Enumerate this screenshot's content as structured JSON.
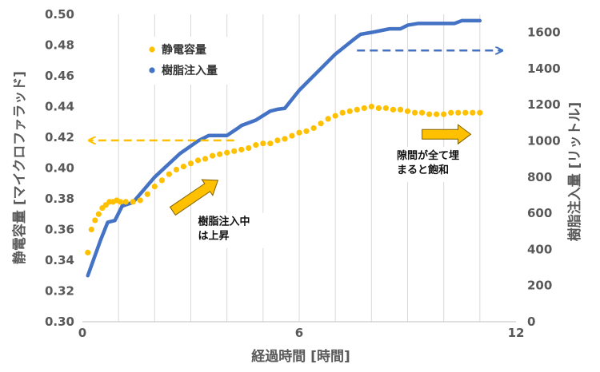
{
  "chart_data": {
    "type": "scatter+line",
    "xlabel": "経過時間 [時間]",
    "ylabel_left": "静電容量 [マイクロファラッド]",
    "ylabel_right": "樹脂注入量 [リットル]",
    "xlim": [
      0,
      12
    ],
    "x_ticks": [
      0,
      6,
      12
    ],
    "ylim_left": [
      0.3,
      0.5
    ],
    "y_ticks_left": [
      "0.30",
      "0.32",
      "0.34",
      "0.36",
      "0.38",
      "0.40",
      "0.42",
      "0.44",
      "0.46",
      "0.48",
      "0.50"
    ],
    "ylim_right": [
      0,
      1700
    ],
    "y_ticks_right": [
      0,
      200,
      400,
      600,
      800,
      1000,
      1200,
      1400,
      1600
    ],
    "grid": "vertical-only",
    "legend": {
      "placement": "top-left",
      "entries": [
        {
          "name": "静電容量",
          "color": "#FFC000"
        },
        {
          "name": "樹脂注入量",
          "color": "#4472C4"
        }
      ]
    },
    "series": [
      {
        "name": "静電容量",
        "kind": "scatter",
        "axis": "left",
        "color": "#FFC000",
        "x": [
          0.15,
          0.25,
          0.35,
          0.45,
          0.55,
          0.65,
          0.75,
          0.85,
          0.95,
          1.05,
          1.2,
          1.4,
          1.6,
          1.8,
          2.0,
          2.2,
          2.4,
          2.6,
          2.8,
          3.0,
          3.2,
          3.4,
          3.6,
          3.8,
          4.0,
          4.2,
          4.4,
          4.6,
          4.8,
          5.0,
          5.2,
          5.4,
          5.6,
          5.8,
          6.0,
          6.2,
          6.4,
          6.6,
          6.8,
          7.0,
          7.2,
          7.4,
          7.6,
          7.8,
          8.0,
          8.2,
          8.4,
          8.6,
          8.8,
          9.0,
          9.2,
          9.4,
          9.6,
          9.8,
          10.0,
          10.2,
          10.4,
          10.6,
          10.8,
          11.0
        ],
        "y": [
          0.345,
          0.36,
          0.366,
          0.37,
          0.374,
          0.376,
          0.378,
          0.378,
          0.379,
          0.378,
          0.378,
          0.378,
          0.379,
          0.383,
          0.388,
          0.392,
          0.396,
          0.399,
          0.401,
          0.403,
          0.405,
          0.406,
          0.408,
          0.409,
          0.41,
          0.411,
          0.412,
          0.413,
          0.415,
          0.416,
          0.416,
          0.418,
          0.419,
          0.421,
          0.423,
          0.424,
          0.426,
          0.429,
          0.432,
          0.434,
          0.436,
          0.437,
          0.438,
          0.439,
          0.44,
          0.439,
          0.439,
          0.438,
          0.438,
          0.437,
          0.436,
          0.436,
          0.435,
          0.435,
          0.435,
          0.436,
          0.436,
          0.436,
          0.436,
          0.436
        ]
      },
      {
        "name": "樹脂注入量",
        "kind": "line",
        "axis": "right",
        "color": "#4472C4",
        "x": [
          0.15,
          0.5,
          0.7,
          0.9,
          1.0,
          1.1,
          1.4,
          2.0,
          2.7,
          3.2,
          3.5,
          4.0,
          4.3,
          4.4,
          4.6,
          4.8,
          5.0,
          5.2,
          5.4,
          5.6,
          6.0,
          6.5,
          7.0,
          7.5,
          7.7,
          8.0,
          8.5,
          8.8,
          9.0,
          9.3,
          9.5,
          10.0,
          10.3,
          10.5,
          11.0
        ],
        "y": [
          255,
          450,
          550,
          560,
          600,
          640,
          660,
          800,
          930,
          1000,
          1030,
          1030,
          1070,
          1085,
          1100,
          1115,
          1140,
          1165,
          1175,
          1180,
          1280,
          1380,
          1480,
          1560,
          1590,
          1600,
          1620,
          1620,
          1640,
          1650,
          1650,
          1650,
          1650,
          1665,
          1665
        ]
      }
    ],
    "annotations": [
      {
        "kind": "dashed-arrow",
        "color": "#FFC000",
        "from": [
          4.2,
          0.418
        ],
        "to": [
          0.2,
          0.418
        ],
        "axis": "left",
        "meaning": "points to left axis"
      },
      {
        "kind": "dashed-arrow",
        "color": "#4472C4",
        "from": [
          7.6,
          1500
        ],
        "to": [
          11.6,
          1500
        ],
        "axis": "right",
        "meaning": "points to right axis"
      },
      {
        "kind": "block-arrow",
        "color": "#FFC000",
        "from": [
          2.5,
          0.372
        ],
        "to": [
          3.75,
          0.392
        ],
        "axis": "left",
        "label": "樹脂注入中\nは上昇",
        "label_at": [
          3.2,
          0.363
        ]
      },
      {
        "kind": "block-arrow",
        "color": "#FFC000",
        "from": [
          9.4,
          0.422
        ],
        "to": [
          10.75,
          0.422
        ],
        "axis": "left",
        "label": "隙間が全て埋\nまると飽和",
        "label_at": [
          8.7,
          0.406
        ]
      }
    ]
  }
}
